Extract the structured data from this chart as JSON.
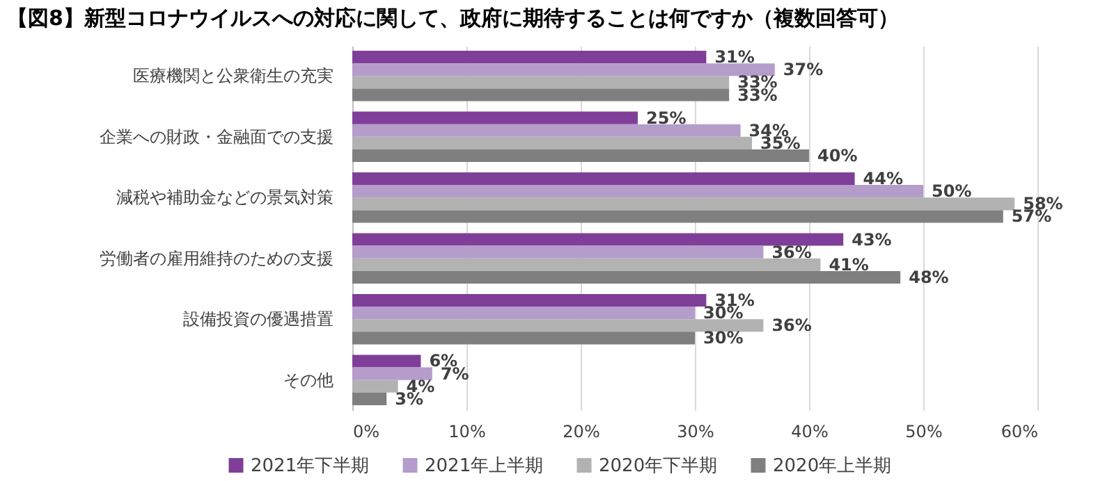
{
  "chart_data": {
    "type": "bar",
    "orientation": "horizontal",
    "title": "【図8】新型コロナウイルスへの対応に関して、政府に期待することは何ですか（複数回答可）",
    "categories": [
      "医療機関と公衆衛生の充実",
      "企業への財政・金融面での支援",
      "減税や補助金などの景気対策",
      "労働者の雇用維持のための支援",
      "設備投資の優遇措置",
      "その他"
    ],
    "series": [
      {
        "name": "2021年下半期",
        "color": "#7f3f98",
        "values": [
          31,
          25,
          44,
          43,
          31,
          6
        ],
        "value_labels": [
          "31%",
          "25%",
          "44%",
          "43%",
          "31%",
          "6%"
        ]
      },
      {
        "name": "2021年上半期",
        "color": "#b49ccb",
        "values": [
          37,
          34,
          50,
          36,
          30,
          7
        ],
        "value_labels": [
          "37%",
          "34%",
          "50%",
          "36%",
          "30%",
          "7%"
        ]
      },
      {
        "name": "2020年下半期",
        "color": "#b2b2b2",
        "values": [
          33,
          35,
          58,
          41,
          36,
          4
        ],
        "value_labels": [
          "33%",
          "35%",
          "58%",
          "41%",
          "36%",
          "4%"
        ]
      },
      {
        "name": "2020年上半期",
        "color": "#7f7f7f",
        "values": [
          33,
          40,
          57,
          48,
          30,
          3
        ],
        "value_labels": [
          "33%",
          "40%",
          "57%",
          "48%",
          "30%",
          "3%"
        ]
      }
    ],
    "xlim": [
      0,
      60
    ],
    "xticks": [
      {
        "value": 0,
        "label": "0%"
      },
      {
        "value": 10,
        "label": "10%"
      },
      {
        "value": 20,
        "label": "20%"
      },
      {
        "value": 30,
        "label": "30%"
      },
      {
        "value": 40,
        "label": "40%"
      },
      {
        "value": 50,
        "label": "50%"
      },
      {
        "value": 60,
        "label": "60%"
      }
    ],
    "grid": "x",
    "legend": "bottom"
  }
}
